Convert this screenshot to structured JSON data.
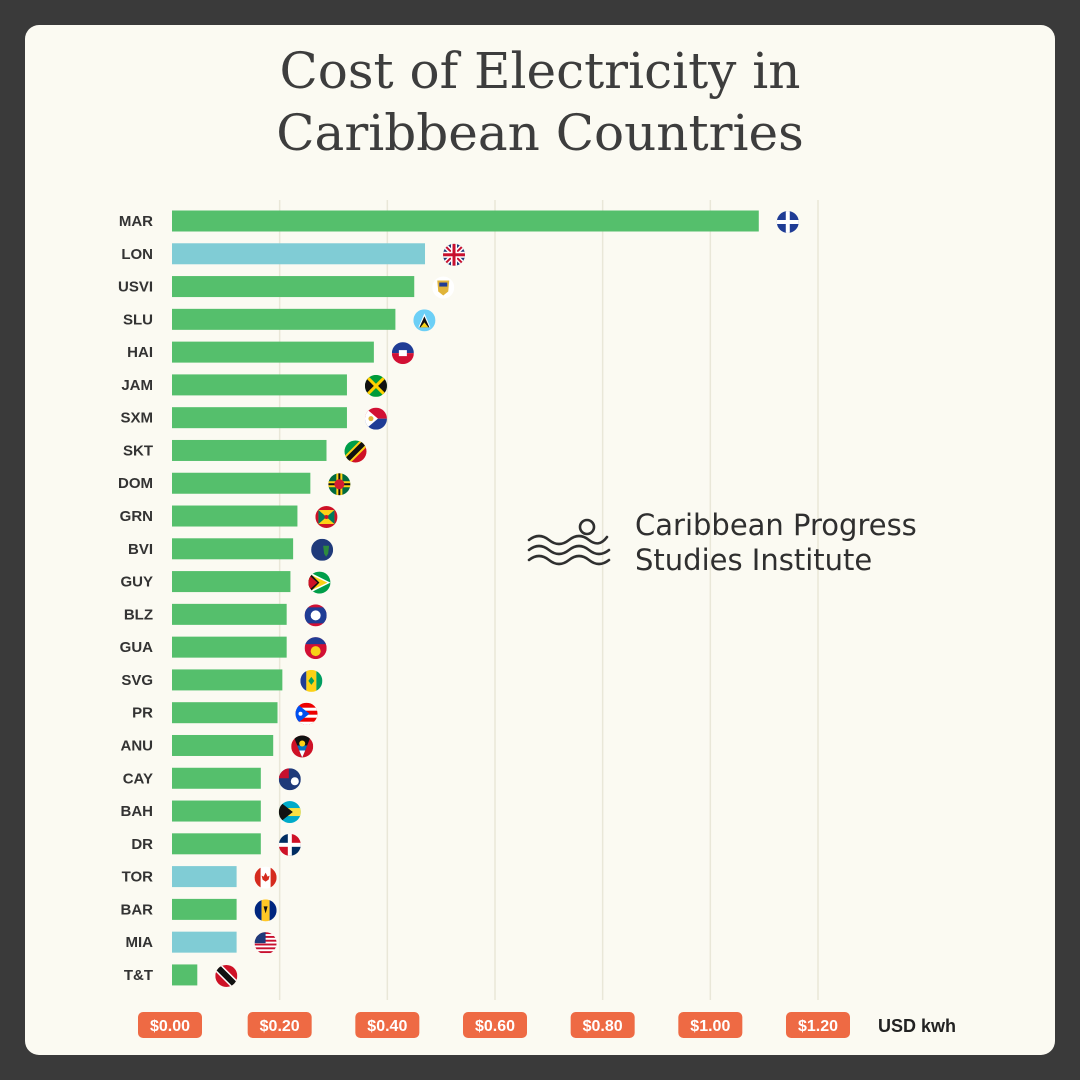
{
  "title_line1": "Cost of Electricity in",
  "title_line2": "Caribbean Countries",
  "brand": {
    "line1": "Caribbean Progress",
    "line2": "Studies Institute"
  },
  "colors": {
    "caribbean": "#55bf6c",
    "reference": "#80ccd5",
    "tick_bg": "#ee6a44",
    "grid": "#e9e7d8",
    "label": "#333333"
  },
  "chart_data": {
    "type": "bar",
    "orientation": "horizontal",
    "x_unit_label": "USD kwh",
    "xlim": [
      0,
      1.2
    ],
    "x_ticks": [
      {
        "value": 0.0,
        "label": "$0.00"
      },
      {
        "value": 0.2,
        "label": "$0.20"
      },
      {
        "value": 0.4,
        "label": "$0.40"
      },
      {
        "value": 0.6,
        "label": "$0.60"
      },
      {
        "value": 0.8,
        "label": "$0.80"
      },
      {
        "value": 1.0,
        "label": "$1.00"
      },
      {
        "value": 1.2,
        "label": "$1.20"
      }
    ],
    "grid": true,
    "bars": [
      {
        "label": "MAR",
        "value": 1.09,
        "group": "caribbean",
        "flag": "martinique-flag-icon"
      },
      {
        "label": "LON",
        "value": 0.47,
        "group": "reference",
        "flag": "uk-flag-icon"
      },
      {
        "label": "USVI",
        "value": 0.45,
        "group": "caribbean",
        "flag": "us-virgin-islands-flag-icon"
      },
      {
        "label": "SLU",
        "value": 0.415,
        "group": "caribbean",
        "flag": "saint-lucia-flag-icon"
      },
      {
        "label": "HAI",
        "value": 0.375,
        "group": "caribbean",
        "flag": "haiti-flag-icon"
      },
      {
        "label": "JAM",
        "value": 0.325,
        "group": "caribbean",
        "flag": "jamaica-flag-icon"
      },
      {
        "label": "SXM",
        "value": 0.325,
        "group": "caribbean",
        "flag": "sint-maarten-flag-icon"
      },
      {
        "label": "SKT",
        "value": 0.287,
        "group": "caribbean",
        "flag": "saint-kitts-flag-icon"
      },
      {
        "label": "DOM",
        "value": 0.257,
        "group": "caribbean",
        "flag": "dominica-flag-icon"
      },
      {
        "label": "GRN",
        "value": 0.233,
        "group": "caribbean",
        "flag": "grenada-flag-icon"
      },
      {
        "label": "BVI",
        "value": 0.225,
        "group": "caribbean",
        "flag": "british-virgin-islands-flag-icon"
      },
      {
        "label": "GUY",
        "value": 0.22,
        "group": "caribbean",
        "flag": "guyana-flag-icon"
      },
      {
        "label": "BLZ",
        "value": 0.213,
        "group": "caribbean",
        "flag": "belize-flag-icon"
      },
      {
        "label": "GUA",
        "value": 0.213,
        "group": "caribbean",
        "flag": "guadeloupe-flag-icon"
      },
      {
        "label": "SVG",
        "value": 0.205,
        "group": "caribbean",
        "flag": "saint-vincent-flag-icon"
      },
      {
        "label": "PR",
        "value": 0.196,
        "group": "caribbean",
        "flag": "puerto-rico-flag-icon"
      },
      {
        "label": "ANU",
        "value": 0.188,
        "group": "caribbean",
        "flag": "antigua-flag-icon"
      },
      {
        "label": "CAY",
        "value": 0.165,
        "group": "caribbean",
        "flag": "cayman-islands-flag-icon"
      },
      {
        "label": "BAH",
        "value": 0.165,
        "group": "caribbean",
        "flag": "bahamas-flag-icon"
      },
      {
        "label": "DR",
        "value": 0.165,
        "group": "caribbean",
        "flag": "dominican-republic-flag-icon"
      },
      {
        "label": "TOR",
        "value": 0.12,
        "group": "reference",
        "flag": "canada-flag-icon"
      },
      {
        "label": "BAR",
        "value": 0.12,
        "group": "caribbean",
        "flag": "barbados-flag-icon"
      },
      {
        "label": "MIA",
        "value": 0.12,
        "group": "reference",
        "flag": "usa-flag-icon"
      },
      {
        "label": "T&T",
        "value": 0.047,
        "group": "caribbean",
        "flag": "trinidad-flag-icon"
      }
    ]
  }
}
